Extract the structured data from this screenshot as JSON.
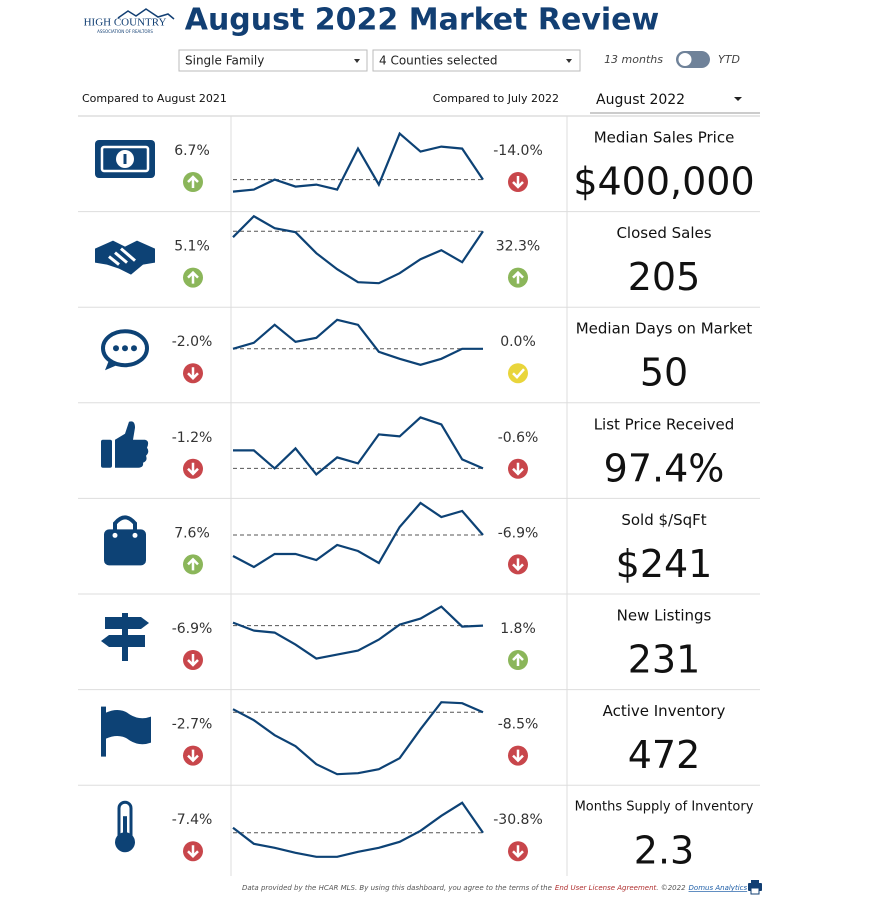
{
  "header": {
    "logo_name": "HIGH COUNTRY",
    "logo_sub": "ASSOCIATION OF REALTORS",
    "title": "August 2022 Market Review"
  },
  "filters": {
    "property_type": "Single Family",
    "counties": "4 Counties selected",
    "toggle_left": "13 months",
    "toggle_right": "YTD",
    "compare_year": "Compared to August 2021",
    "compare_month": "Compared to July 2022",
    "month": "August 2022"
  },
  "metrics": [
    {
      "label": "Median Sales Price",
      "value": "$400,000",
      "yoy": "6.7%",
      "yoy_dir": "up",
      "mom": "-14.0%",
      "mom_dir": "down",
      "trend": [
        12,
        14,
        24,
        17,
        19,
        14,
        55,
        19,
        70,
        52,
        57,
        55,
        24
      ]
    },
    {
      "label": "Closed Sales",
      "value": "205",
      "yoy": "5.1%",
      "yoy_dir": "up",
      "mom": "32.3%",
      "mom_dir": "up",
      "trend": [
        62,
        83,
        71,
        67,
        46,
        30,
        17,
        16,
        26,
        40,
        49,
        37,
        68
      ]
    },
    {
      "label": "Median Days on Market",
      "value": "50",
      "yoy": "-2.0%",
      "yoy_dir": "down",
      "mom": "0.0%",
      "mom_dir": "flat",
      "trend": [
        46,
        52,
        70,
        53,
        57,
        75,
        70,
        43,
        36,
        30,
        36,
        46,
        46
      ]
    },
    {
      "label": "List Price Received",
      "value": "97.4%",
      "yoy": "-1.2%",
      "yoy_dir": "down",
      "mom": "-0.6%",
      "mom_dir": "down",
      "trend": [
        40,
        40,
        22,
        42,
        16,
        33,
        27,
        56,
        54,
        73,
        66,
        31,
        22
      ]
    },
    {
      "label": "Sold $/SqFt",
      "value": "$241",
      "yoy": "7.6%",
      "yoy_dir": "up",
      "mom": "-6.9%",
      "mom_dir": "down",
      "trend": [
        30,
        19,
        32,
        32,
        26,
        41,
        35,
        23,
        59,
        83,
        69,
        75,
        51
      ]
    },
    {
      "label": "New Listings",
      "value": "231",
      "yoy": "-6.9%",
      "yoy_dir": "down",
      "mom": "1.8%",
      "mom_dir": "up",
      "trend": [
        59,
        51,
        49,
        37,
        23,
        27,
        31,
        42,
        57,
        63,
        75,
        55,
        56
      ]
    },
    {
      "label": "Active Inventory",
      "value": "472",
      "yoy": "-2.7%",
      "yoy_dir": "down",
      "mom": "-8.5%",
      "mom_dir": "down",
      "trend": [
        68,
        57,
        42,
        31,
        13,
        3,
        4,
        8,
        19,
        48,
        75,
        74,
        65
      ]
    },
    {
      "label": "Months Supply of Inventory",
      "value": "2.3",
      "yoy": "-7.4%",
      "yoy_dir": "down",
      "mom": "-30.8%",
      "mom_dir": "down",
      "trend": [
        45,
        29,
        25,
        20,
        16,
        16,
        21,
        25,
        31,
        42,
        57,
        70,
        40
      ]
    }
  ],
  "footer": {
    "text": "Data provided by the HCAR MLS.  By using this dashboard, you agree to the terms of the",
    "license": "End User License Agreement",
    "copyright": ". ©2022",
    "company": "Domus Analytics"
  }
}
